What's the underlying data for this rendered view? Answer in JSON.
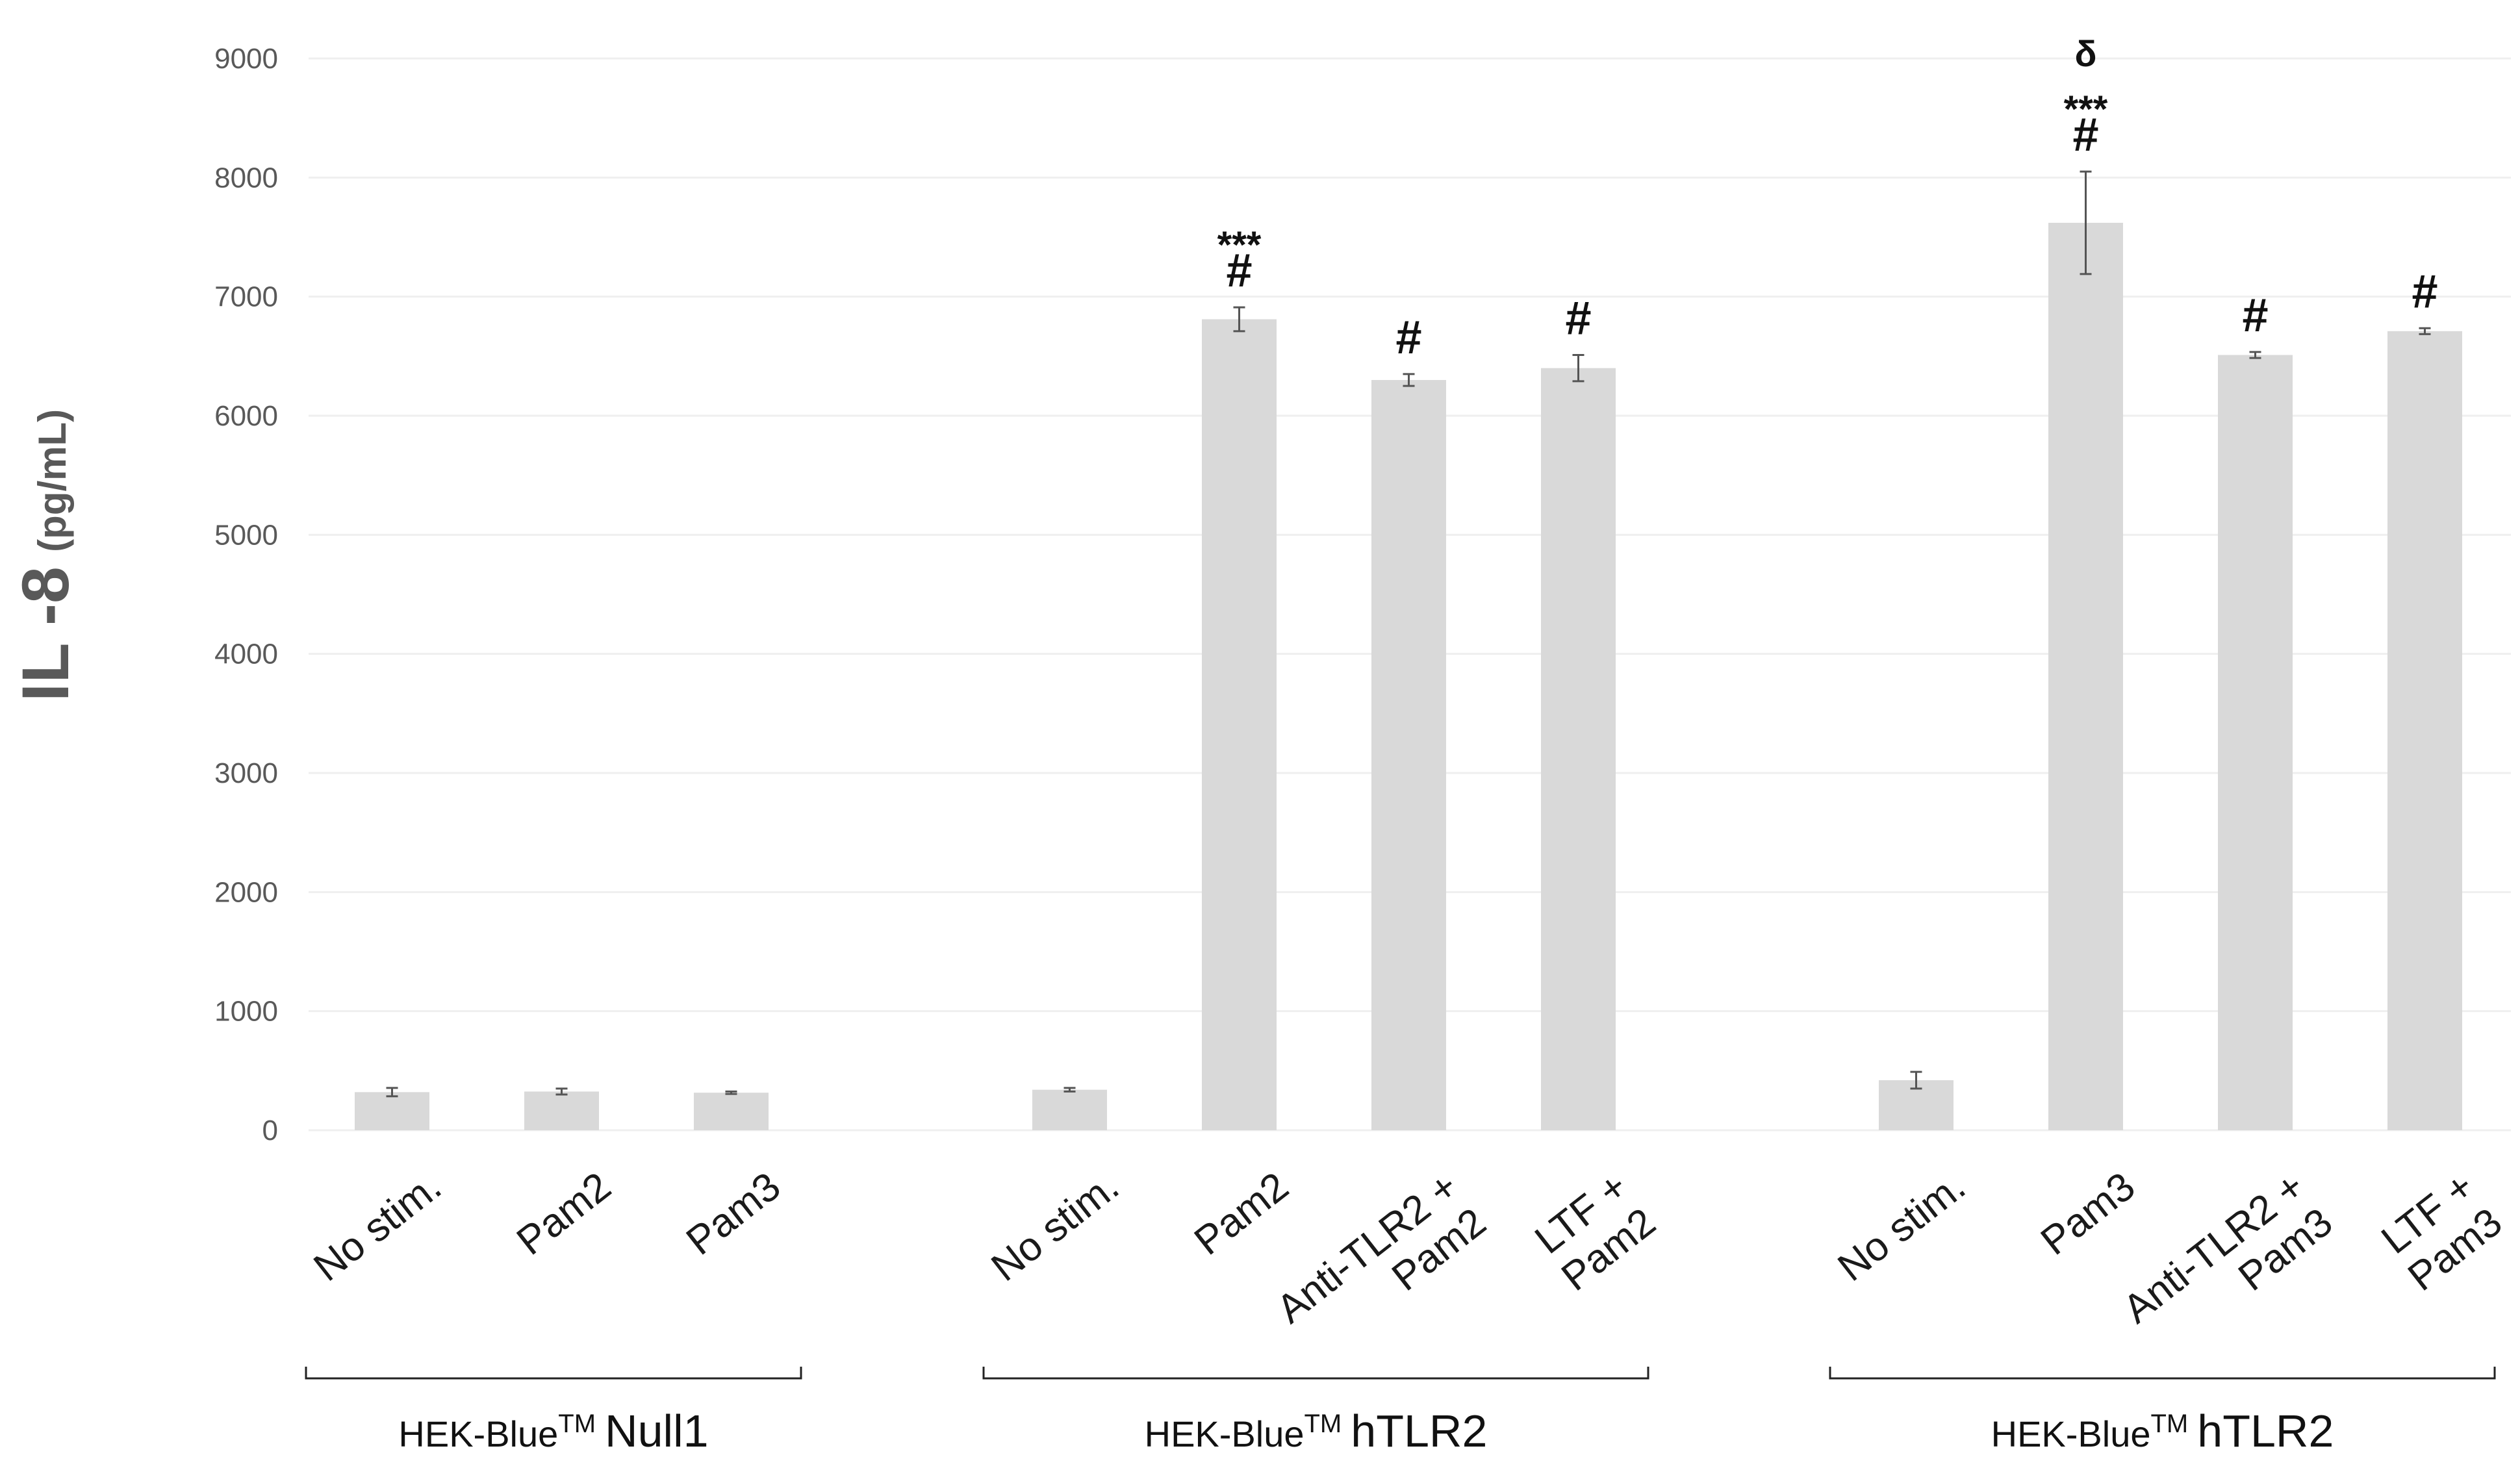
{
  "chart_data": {
    "type": "bar",
    "ylabel_main": "IL -8",
    "ylabel_unit": "(pg/mL)",
    "ylim": [
      0,
      9000
    ],
    "yticks": [
      0,
      1000,
      2000,
      3000,
      4000,
      5000,
      6000,
      7000,
      8000,
      9000
    ],
    "grid": true,
    "colors": {
      "bar": "#d9d9d9",
      "grid": "#efefef",
      "error": "#555555"
    },
    "groups": [
      {
        "label_prefix": "HEK-Blue",
        "label_tm": "TM",
        "label_suffix": "Null1",
        "bars": [
          {
            "category": [
              "No stim."
            ],
            "value": 320,
            "error": 35,
            "annotations": []
          },
          {
            "category": [
              "Pam2"
            ],
            "value": 325,
            "error": 25,
            "annotations": []
          },
          {
            "category": [
              "Pam3"
            ],
            "value": 315,
            "error": 10,
            "annotations": []
          }
        ]
      },
      {
        "label_prefix": "HEK-Blue",
        "label_tm": "TM",
        "label_suffix": "hTLR2",
        "bars": [
          {
            "category": [
              "No stim."
            ],
            "value": 340,
            "error": 15,
            "annotations": []
          },
          {
            "category": [
              "Pam2"
            ],
            "value": 6810,
            "error": 100,
            "annotations": [
              "#",
              "***"
            ]
          },
          {
            "category": [
              "Anti-TLR2 +",
              "Pam2"
            ],
            "value": 6300,
            "error": 50,
            "annotations": [
              "#"
            ]
          },
          {
            "category": [
              "LTF  +",
              "Pam2"
            ],
            "value": 6400,
            "error": 110,
            "annotations": [
              "#"
            ]
          }
        ]
      },
      {
        "label_prefix": "HEK-Blue",
        "label_tm": "TM",
        "label_suffix": "hTLR2",
        "bars": [
          {
            "category": [
              "No stim."
            ],
            "value": 420,
            "error": 70,
            "annotations": []
          },
          {
            "category": [
              "Pam3"
            ],
            "value": 7620,
            "error": 430,
            "annotations": [
              "#",
              "***",
              "δ"
            ]
          },
          {
            "category": [
              "Anti-TLR2 +",
              "Pam3"
            ],
            "value": 6510,
            "error": 25,
            "annotations": [
              "#"
            ]
          },
          {
            "category": [
              "LTF  +",
              "Pam3"
            ],
            "value": 6710,
            "error": 25,
            "annotations": [
              "#"
            ]
          }
        ]
      }
    ]
  }
}
